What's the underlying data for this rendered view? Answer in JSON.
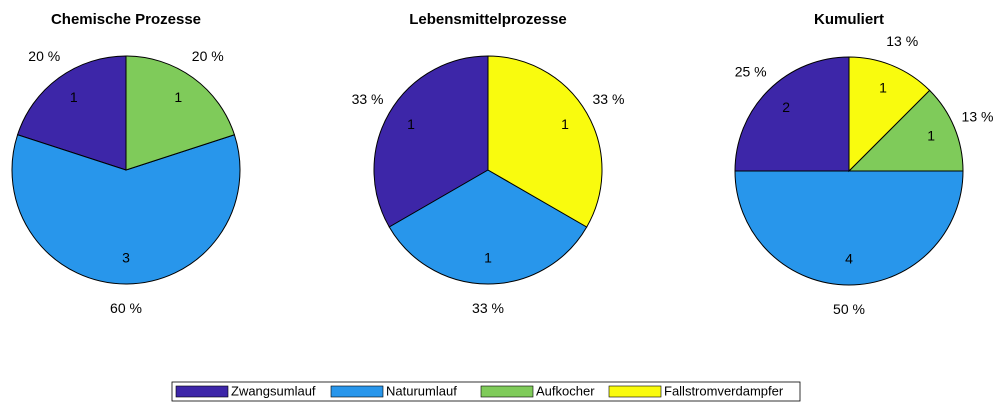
{
  "chart_data": [
    {
      "type": "pie",
      "title": "Chemische Prozesse",
      "categories": [
        "Zwangsumlauf",
        "Naturumlauf",
        "Aufkocher"
      ],
      "values": [
        1,
        3,
        1
      ],
      "percent_labels": [
        "20 %",
        "60 %",
        "20 %"
      ]
    },
    {
      "type": "pie",
      "title": "Lebensmittelprozesse",
      "categories": [
        "Zwangsumlauf",
        "Naturumlauf",
        "Fallstromverdampfer"
      ],
      "values": [
        1,
        1,
        1
      ],
      "percent_labels": [
        "33 %",
        "33 %",
        "33 %"
      ]
    },
    {
      "type": "pie",
      "title": "Kumuliert",
      "categories": [
        "Zwangsumlauf",
        "Naturumlauf",
        "Aufkocher",
        "Fallstromverdampfer"
      ],
      "values": [
        2,
        4,
        1,
        1
      ],
      "percent_labels": [
        "25 %",
        "50 %",
        "13 %",
        "13 %"
      ]
    }
  ],
  "legend": {
    "position": "bottom",
    "entries": [
      {
        "name": "Zwangsumlauf",
        "color": "#3d26a8"
      },
      {
        "name": "Naturumlauf",
        "color": "#2896eb"
      },
      {
        "name": "Aufkocher",
        "color": "#7fcb5a"
      },
      {
        "name": "Fallstromverdampfer",
        "color": "#f9fb0e"
      }
    ]
  }
}
